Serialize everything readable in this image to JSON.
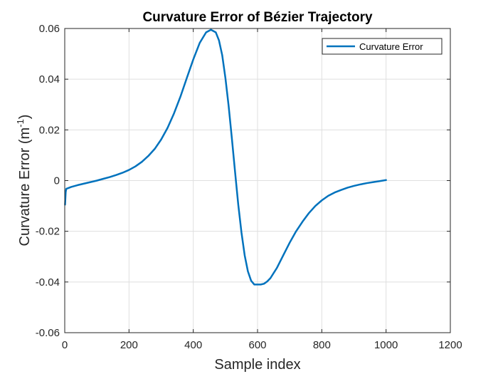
{
  "chart_data": {
    "type": "line",
    "title": "Curvature Error of Bézier Trajectory",
    "xlabel": "Sample index",
    "ylabel": "Curvature Error (m",
    "ylabel_sup": "-1",
    "ylabel_close": ")",
    "xlim": [
      0,
      1200
    ],
    "ylim": [
      -0.06,
      0.06
    ],
    "x_ticks": [
      0,
      200,
      400,
      600,
      800,
      1000,
      1200
    ],
    "x_tick_labels": [
      "0",
      "200",
      "400",
      "600",
      "800",
      "1000",
      "1200"
    ],
    "y_ticks": [
      -0.06,
      -0.04,
      -0.02,
      0,
      0.02,
      0.04,
      0.06
    ],
    "y_tick_labels": [
      "-0.06",
      "-0.04",
      "-0.02",
      "0",
      "0.02",
      "0.04",
      "0.06"
    ],
    "grid": true,
    "legend_position": "top-right",
    "series": [
      {
        "name": "Curvature Error",
        "color": "#0072BD",
        "x": [
          1,
          3,
          5,
          10,
          20,
          40,
          60,
          80,
          100,
          120,
          140,
          160,
          180,
          200,
          220,
          240,
          260,
          280,
          300,
          320,
          340,
          360,
          380,
          400,
          420,
          440,
          455,
          470,
          480,
          490,
          500,
          510,
          520,
          530,
          540,
          550,
          560,
          570,
          580,
          590,
          600,
          610,
          620,
          630,
          640,
          660,
          680,
          700,
          720,
          740,
          760,
          780,
          800,
          820,
          840,
          860,
          880,
          900,
          920,
          940,
          960,
          980,
          1000
        ],
        "y": [
          -0.0095,
          -0.0045,
          -0.0032,
          -0.003,
          -0.0025,
          -0.0018,
          -0.0012,
          -0.0006,
          0.0,
          0.0007,
          0.0014,
          0.0022,
          0.0031,
          0.0042,
          0.0056,
          0.0074,
          0.0097,
          0.0125,
          0.0162,
          0.0208,
          0.0265,
          0.0331,
          0.0405,
          0.0478,
          0.0543,
          0.0585,
          0.0595,
          0.0585,
          0.0553,
          0.0495,
          0.0405,
          0.0295,
          0.0168,
          0.0035,
          -0.0095,
          -0.0205,
          -0.0295,
          -0.0358,
          -0.0395,
          -0.041,
          -0.041,
          -0.041,
          -0.0407,
          -0.0398,
          -0.0385,
          -0.0345,
          -0.0295,
          -0.0245,
          -0.02,
          -0.0162,
          -0.0128,
          -0.01,
          -0.0078,
          -0.006,
          -0.0047,
          -0.0037,
          -0.0028,
          -0.0021,
          -0.0015,
          -0.001,
          -0.0006,
          -0.0002,
          0.0002
        ]
      }
    ]
  }
}
